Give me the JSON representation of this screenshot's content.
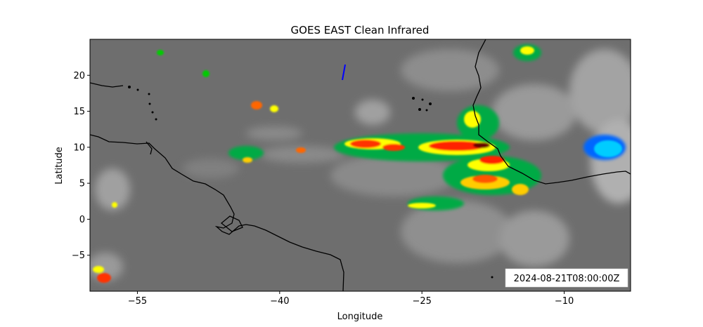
{
  "title": "GOES EAST Clean Infrared",
  "xlabel": "Longitude",
  "ylabel": "Latitude",
  "timestamp": "2024-08-21T08:00:00Z",
  "x_ticks": [
    {
      "value": -55,
      "label": "−55"
    },
    {
      "value": -40,
      "label": "−40"
    },
    {
      "value": -25,
      "label": "−25"
    },
    {
      "value": -10,
      "label": "−10"
    }
  ],
  "y_ticks": [
    {
      "value": 20,
      "label": "20"
    },
    {
      "value": 15,
      "label": "15"
    },
    {
      "value": 10,
      "label": "10"
    },
    {
      "value": 5,
      "label": "5"
    },
    {
      "value": 0,
      "label": "0"
    },
    {
      "value": -5,
      "label": "−5"
    }
  ],
  "extent": {
    "lon_min": -60,
    "lon_max": -3,
    "lat_min": -10,
    "lat_max": 25
  },
  "colors": {
    "background_gray": "#6e6e6e",
    "coastline": "#000000",
    "marker_line": "#0000ff",
    "convection_scale": [
      "#00ffff",
      "#0066ff",
      "#00cc00",
      "#ffff00",
      "#ff6600",
      "#ff0000",
      "#660000"
    ]
  },
  "chart_data": {
    "type": "heatmap",
    "title": "GOES EAST Clean Infrared",
    "xlabel": "Longitude",
    "ylabel": "Latitude",
    "xlim": [
      -60,
      -3
    ],
    "ylim": [
      -10,
      25
    ],
    "x_ticks": [
      -55,
      -40,
      -25,
      -10
    ],
    "y_ticks": [
      -5,
      0,
      5,
      10,
      15,
      20
    ],
    "annotations": [
      "2024-08-21T08:00:00Z"
    ]
  }
}
